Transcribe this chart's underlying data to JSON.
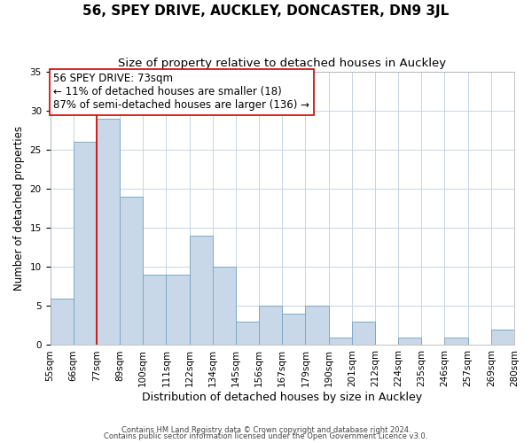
{
  "title": "56, SPEY DRIVE, AUCKLEY, DONCASTER, DN9 3JL",
  "subtitle": "Size of property relative to detached houses in Auckley",
  "xlabel": "Distribution of detached houses by size in Auckley",
  "ylabel": "Number of detached properties",
  "bin_labels": [
    "55sqm",
    "66sqm",
    "77sqm",
    "89sqm",
    "100sqm",
    "111sqm",
    "122sqm",
    "134sqm",
    "145sqm",
    "156sqm",
    "167sqm",
    "179sqm",
    "190sqm",
    "201sqm",
    "212sqm",
    "224sqm",
    "235sqm",
    "246sqm",
    "257sqm",
    "269sqm",
    "280sqm"
  ],
  "bar_heights": [
    6,
    26,
    29,
    19,
    9,
    9,
    14,
    10,
    3,
    5,
    4,
    5,
    1,
    3,
    0,
    1,
    0,
    1,
    0,
    2
  ],
  "bar_color": "#c8d8e8",
  "bar_edge_color": "#7aaac8",
  "vline_x_index": 2,
  "vline_color": "#cc0000",
  "ylim": [
    0,
    35
  ],
  "yticks": [
    0,
    5,
    10,
    15,
    20,
    25,
    30,
    35
  ],
  "annotation_text": "56 SPEY DRIVE: 73sqm\n← 11% of detached houses are smaller (18)\n87% of semi-detached houses are larger (136) →",
  "footer_line1": "Contains HM Land Registry data © Crown copyright and database right 2024.",
  "footer_line2": "Contains public sector information licensed under the Open Government Licence v3.0.",
  "title_fontsize": 11,
  "subtitle_fontsize": 9.5,
  "xlabel_fontsize": 9,
  "ylabel_fontsize": 8.5,
  "tick_fontsize": 7.5,
  "annotation_fontsize": 8.5,
  "footer_fontsize": 6,
  "background_color": "#ffffff",
  "grid_color": "#c5d5e5"
}
